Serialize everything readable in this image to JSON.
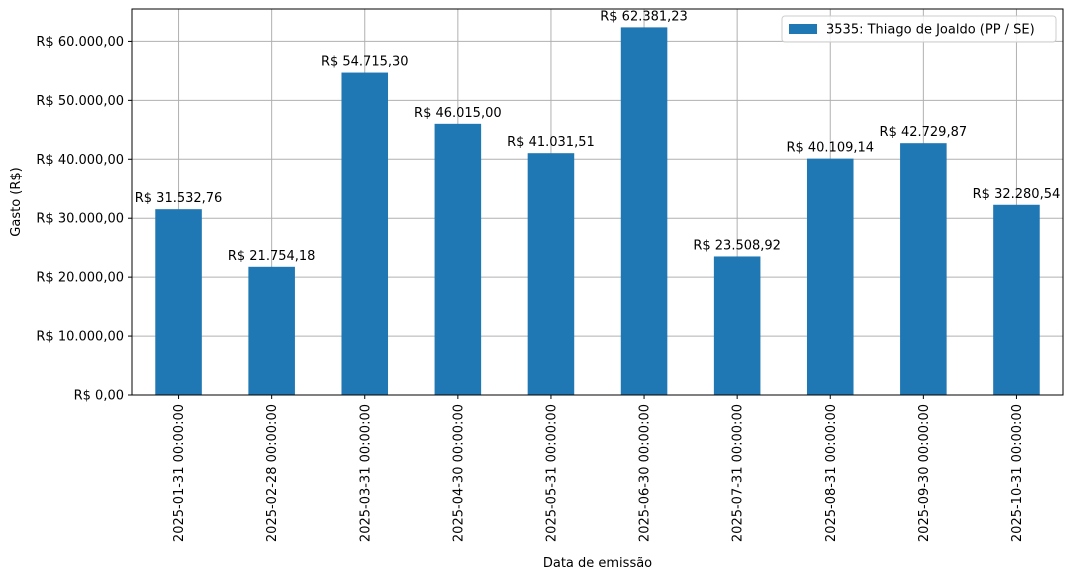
{
  "chart_data": {
    "type": "bar",
    "xlabel": "Data de emissão",
    "ylabel": "Gasto (R$)",
    "ylim": [
      0,
      65500
    ],
    "yticks": [
      0,
      10000,
      20000,
      30000,
      40000,
      50000,
      60000
    ],
    "ytick_labels": [
      "R$ 0,00",
      "R$ 10.000,00",
      "R$ 20.000,00",
      "R$ 30.000,00",
      "R$ 40.000,00",
      "R$ 50.000,00",
      "R$ 60.000,00"
    ],
    "grid": true,
    "legend_position": "top-right",
    "categories": [
      "2025-01-31 00:00:00",
      "2025-02-28 00:00:00",
      "2025-03-31 00:00:00",
      "2025-04-30 00:00:00",
      "2025-05-31 00:00:00",
      "2025-06-30 00:00:00",
      "2025-07-31 00:00:00",
      "2025-08-31 00:00:00",
      "2025-09-30 00:00:00",
      "2025-10-31 00:00:00"
    ],
    "series": [
      {
        "name": "3535: Thiago de Joaldo (PP / SE)",
        "color": "#1f77b4",
        "values": [
          31532.76,
          21754.18,
          54715.3,
          46015.0,
          41031.51,
          62381.23,
          23508.92,
          40109.14,
          42729.87,
          32280.54
        ],
        "labels": [
          "R$ 31.532,76",
          "R$ 21.754,18",
          "R$ 54.715,30",
          "R$ 46.015,00",
          "R$ 41.031,51",
          "R$ 62.381,23",
          "R$ 23.508,92",
          "R$ 40.109,14",
          "R$ 42.729,87",
          "R$ 32.280,54"
        ]
      }
    ]
  }
}
